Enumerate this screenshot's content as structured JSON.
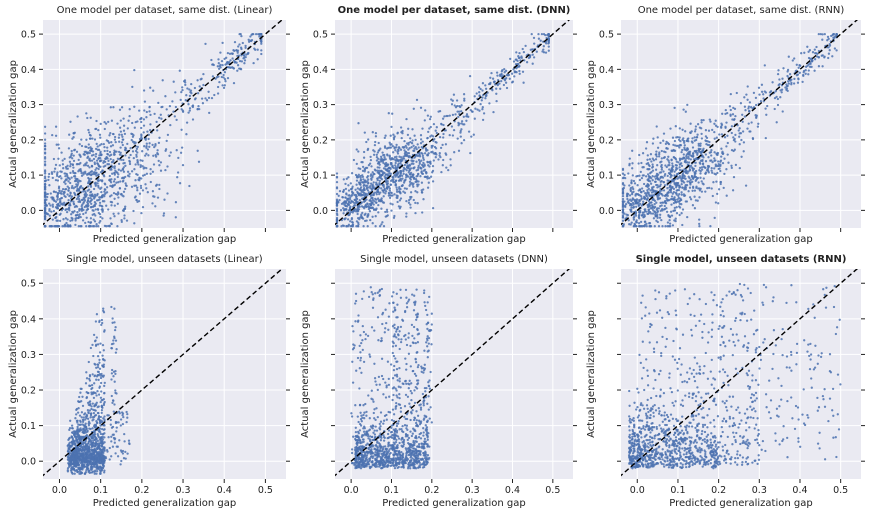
{
  "figure": {
    "point_color": "#4c72b0",
    "plot_background": "#eaeaf2",
    "grid_color": "#ffffff",
    "diagonal_color": "#000000"
  },
  "chart_data": [
    {
      "type": "scatter",
      "title": "One model per dataset, same dist. (Linear)",
      "title_bold": false,
      "xlabel": "Predicted generalization gap",
      "ylabel": "Actual generalization gap",
      "xlim": [
        -0.04,
        0.55
      ],
      "ylim": [
        -0.05,
        0.54
      ],
      "xticks": [
        0.0,
        0.1,
        0.2,
        0.3,
        0.4,
        0.5
      ],
      "xtick_labels": [
        "",
        "",
        "",
        "",
        "",
        ""
      ],
      "yticks": [
        0.0,
        0.1,
        0.2,
        0.3,
        0.4,
        0.5
      ],
      "ytick_labels": [
        "0.0",
        "0.1",
        "0.2",
        "0.3",
        "0.4",
        "0.5"
      ],
      "reference_line": "y = x",
      "point_pattern": "diagonal",
      "spread": 0.035,
      "n_points": 1300
    },
    {
      "type": "scatter",
      "title": "One model per dataset, same dist. (DNN)",
      "title_bold": true,
      "xlabel": "Predicted generalization gap",
      "ylabel": "Actual generalization gap",
      "xlim": [
        -0.04,
        0.55
      ],
      "ylim": [
        -0.05,
        0.54
      ],
      "xticks": [
        0.0,
        0.1,
        0.2,
        0.3,
        0.4,
        0.5
      ],
      "xtick_labels": [
        "",
        "",
        "",
        "",
        "",
        ""
      ],
      "yticks": [
        0.0,
        0.1,
        0.2,
        0.3,
        0.4,
        0.5
      ],
      "ytick_labels": [
        "0.0",
        "0.1",
        "0.2",
        "0.3",
        "0.4",
        "0.5"
      ],
      "reference_line": "y = x",
      "point_pattern": "diagonal",
      "spread": 0.022,
      "n_points": 1300
    },
    {
      "type": "scatter",
      "title": "One model per dataset, same dist. (RNN)",
      "title_bold": false,
      "xlabel": "Predicted generalization gap",
      "ylabel": "Actual generalization gap",
      "xlim": [
        -0.04,
        0.55
      ],
      "ylim": [
        -0.05,
        0.54
      ],
      "xticks": [
        0.0,
        0.1,
        0.2,
        0.3,
        0.4,
        0.5
      ],
      "xtick_labels": [
        "",
        "",
        "",
        "",
        "",
        ""
      ],
      "yticks": [
        0.0,
        0.1,
        0.2,
        0.3,
        0.4,
        0.5
      ],
      "ytick_labels": [
        "0.0",
        "0.1",
        "0.2",
        "0.3",
        "0.4",
        "0.5"
      ],
      "reference_line": "y = x",
      "point_pattern": "diagonal",
      "spread": 0.026,
      "n_points": 1300
    },
    {
      "type": "scatter",
      "title": "Single model, unseen datasets (Linear)",
      "title_bold": false,
      "xlabel": "Predicted generalization gap",
      "ylabel": "Actual generalization gap",
      "xlim": [
        -0.04,
        0.55
      ],
      "ylim": [
        -0.05,
        0.54
      ],
      "xticks": [
        0.0,
        0.1,
        0.2,
        0.3,
        0.4,
        0.5
      ],
      "xtick_labels": [
        "0.0",
        "0.1",
        "0.2",
        "0.3",
        "0.4",
        "0.5"
      ],
      "yticks": [
        0.0,
        0.1,
        0.2,
        0.3,
        0.4,
        0.5
      ],
      "ytick_labels": [
        "0.0",
        "0.1",
        "0.2",
        "0.3",
        "0.4",
        "0.5"
      ],
      "reference_line": "y = x",
      "point_pattern": "linear-unseen",
      "n_points": 1300
    },
    {
      "type": "scatter",
      "title": "Single model, unseen datasets (DNN)",
      "title_bold": false,
      "xlabel": "Predicted generalization gap",
      "ylabel": "Actual generalization gap",
      "xlim": [
        -0.04,
        0.55
      ],
      "ylim": [
        -0.05,
        0.54
      ],
      "xticks": [
        0.0,
        0.1,
        0.2,
        0.3,
        0.4,
        0.5
      ],
      "xtick_labels": [
        "0.0",
        "0.1",
        "0.2",
        "0.3",
        "0.4",
        "0.5"
      ],
      "yticks": [
        0.0,
        0.1,
        0.2,
        0.3,
        0.4,
        0.5
      ],
      "ytick_labels": [
        "",
        "",
        "",
        "",
        "",
        ""
      ],
      "reference_line": "y = x",
      "point_pattern": "dnn-unseen",
      "n_points": 1300
    },
    {
      "type": "scatter",
      "title": "Single model, unseen datasets (RNN)",
      "title_bold": true,
      "xlabel": "Predicted generalization gap",
      "ylabel": "Actual generalization gap",
      "xlim": [
        -0.04,
        0.55
      ],
      "ylim": [
        -0.05,
        0.54
      ],
      "xticks": [
        0.0,
        0.1,
        0.2,
        0.3,
        0.4,
        0.5
      ],
      "xtick_labels": [
        "0.0",
        "0.1",
        "0.2",
        "0.3",
        "0.4",
        "0.5"
      ],
      "yticks": [
        0.0,
        0.1,
        0.2,
        0.3,
        0.4,
        0.5
      ],
      "ytick_labels": [
        "",
        "",
        "",
        "",
        "",
        ""
      ],
      "reference_line": "y = x",
      "point_pattern": "rnn-unseen",
      "n_points": 1300
    }
  ]
}
